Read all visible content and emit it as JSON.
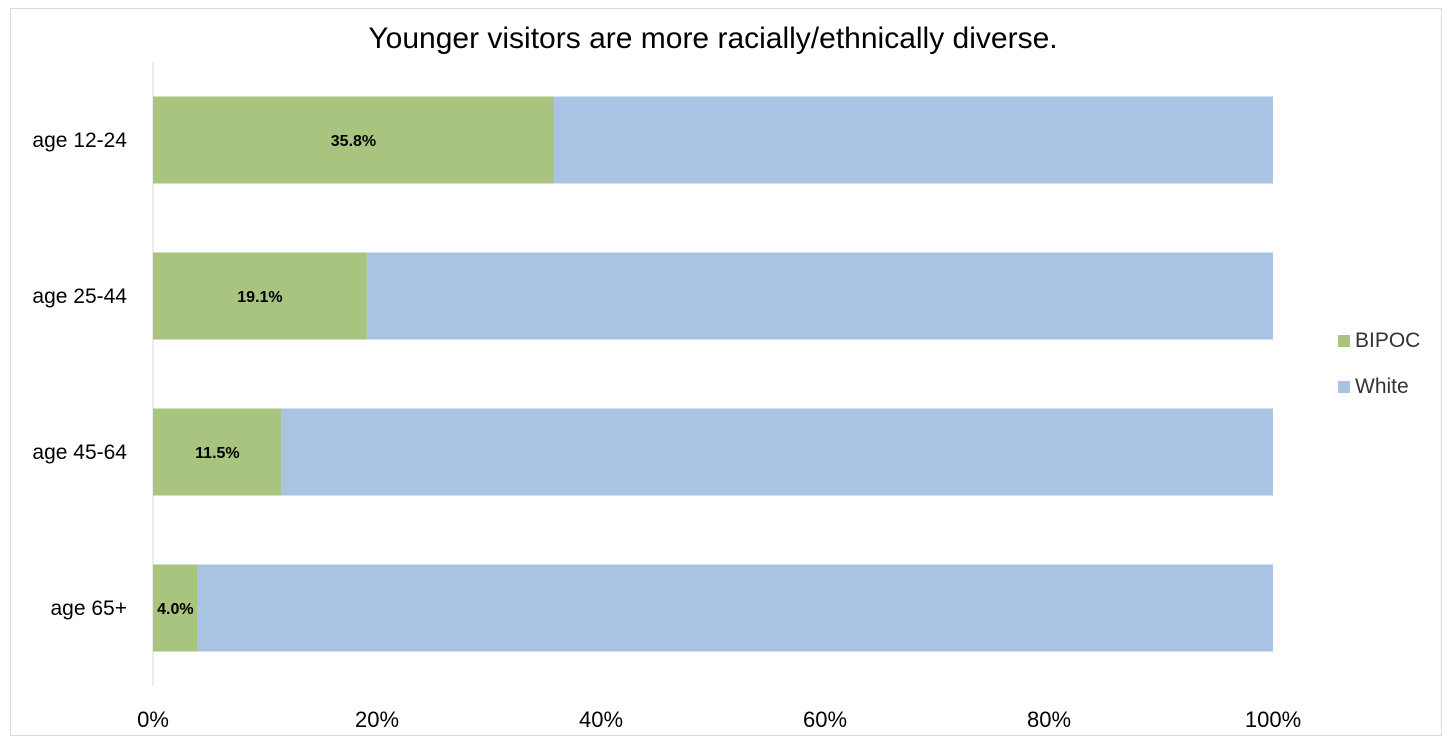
{
  "chart_data": {
    "type": "bar",
    "orientation": "horizontal",
    "stacked": true,
    "title": "Younger visitors are more racially/ethnically diverse.",
    "categories": [
      "age 12-24",
      "age 25-44",
      "age 45-64",
      "age 65+"
    ],
    "series": [
      {
        "name": "BIPOC",
        "values": [
          35.8,
          19.1,
          11.5,
          4.0
        ],
        "labels": [
          "35.8%",
          "19.1%",
          "11.5%",
          "4.0%"
        ],
        "color": "#a9c47f"
      },
      {
        "name": "White",
        "values": [
          64.2,
          80.9,
          88.5,
          96.0
        ],
        "color": "#a9c4e2"
      }
    ],
    "x_ticks": [
      "0%",
      "20%",
      "40%",
      "60%",
      "80%",
      "100%"
    ],
    "xlim": [
      0,
      100
    ],
    "grid": false,
    "legend_position": "right"
  }
}
